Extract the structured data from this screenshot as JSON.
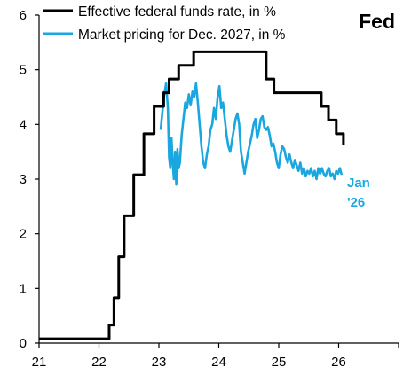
{
  "chart_data": {
    "type": "line",
    "title": "Fed",
    "xlabel": "",
    "ylabel": "",
    "xlim": [
      21,
      27
    ],
    "ylim": [
      0,
      6
    ],
    "x_ticks": [
      "21",
      "22",
      "23",
      "24",
      "25",
      "26"
    ],
    "y_ticks": [
      "0",
      "1",
      "2",
      "3",
      "4",
      "5",
      "6"
    ],
    "grid": false,
    "legend_position": "top-left",
    "end_label": [
      "Jan",
      "'26"
    ],
    "series": [
      {
        "name": "Effective federal funds rate, in %",
        "color": "#000000",
        "step": true,
        "x": [
          21.0,
          22.17,
          22.25,
          22.33,
          22.42,
          22.58,
          22.75,
          22.92,
          23.08,
          23.17,
          23.33,
          23.58,
          24.71,
          24.79,
          24.92,
          25.71,
          25.83,
          25.96,
          26.08
        ],
        "y": [
          0.08,
          0.33,
          0.83,
          1.58,
          2.33,
          3.08,
          3.83,
          4.33,
          4.58,
          4.83,
          5.08,
          5.33,
          5.33,
          4.83,
          4.58,
          4.33,
          4.08,
          3.83,
          3.63
        ]
      },
      {
        "name": "Market pricing for Dec. 2027, in %",
        "color": "#1aa7e0",
        "step": false,
        "x": [
          23.03,
          23.06,
          23.09,
          23.12,
          23.15,
          23.17,
          23.19,
          23.21,
          23.23,
          23.25,
          23.27,
          23.29,
          23.31,
          23.33,
          23.35,
          23.38,
          23.41,
          23.44,
          23.47,
          23.5,
          23.53,
          23.56,
          23.59,
          23.62,
          23.65,
          23.68,
          23.71,
          23.74,
          23.77,
          23.8,
          23.83,
          23.86,
          23.89,
          23.92,
          23.95,
          23.98,
          24.01,
          24.04,
          24.07,
          24.1,
          24.13,
          24.16,
          24.19,
          24.22,
          24.25,
          24.28,
          24.31,
          24.34,
          24.37,
          24.4,
          24.43,
          24.46,
          24.49,
          24.52,
          24.55,
          24.58,
          24.61,
          24.64,
          24.67,
          24.7,
          24.73,
          24.76,
          24.79,
          24.82,
          24.85,
          24.88,
          24.91,
          24.94,
          24.97,
          25.0,
          25.03,
          25.06,
          25.09,
          25.12,
          25.15,
          25.18,
          25.21,
          25.24,
          25.27,
          25.3,
          25.33,
          25.36,
          25.39,
          25.42,
          25.45,
          25.48,
          25.51,
          25.54,
          25.57,
          25.6,
          25.63,
          25.66,
          25.69,
          25.72,
          25.75,
          25.78,
          25.81,
          25.84,
          25.87,
          25.9,
          25.93,
          25.96,
          25.99,
          26.02,
          26.05
        ],
        "y": [
          3.9,
          4.25,
          4.55,
          4.75,
          4.3,
          3.4,
          3.2,
          3.75,
          3.3,
          3.0,
          3.5,
          2.9,
          3.55,
          3.2,
          3.3,
          3.8,
          4.1,
          4.4,
          4.3,
          4.55,
          4.35,
          4.6,
          4.5,
          4.75,
          4.4,
          4.0,
          3.6,
          3.3,
          3.2,
          3.45,
          3.6,
          3.9,
          4.0,
          4.3,
          4.1,
          4.5,
          4.7,
          4.3,
          4.4,
          4.1,
          3.8,
          3.6,
          3.5,
          3.7,
          3.9,
          4.1,
          4.2,
          4.0,
          3.5,
          3.3,
          3.1,
          3.3,
          3.5,
          3.65,
          3.8,
          4.0,
          4.1,
          3.75,
          3.9,
          4.1,
          4.15,
          3.95,
          3.9,
          3.95,
          3.8,
          3.6,
          3.65,
          3.5,
          3.3,
          3.2,
          3.45,
          3.6,
          3.55,
          3.4,
          3.3,
          3.45,
          3.3,
          3.2,
          3.35,
          3.25,
          3.15,
          3.3,
          3.1,
          3.2,
          3.05,
          3.15,
          3.1,
          3.2,
          3.05,
          3.15,
          3.0,
          3.2,
          3.1,
          3.2,
          3.1,
          3.05,
          3.15,
          3.2,
          3.05,
          3.1,
          3.0,
          3.15,
          3.1,
          3.2,
          3.08
        ]
      }
    ]
  }
}
